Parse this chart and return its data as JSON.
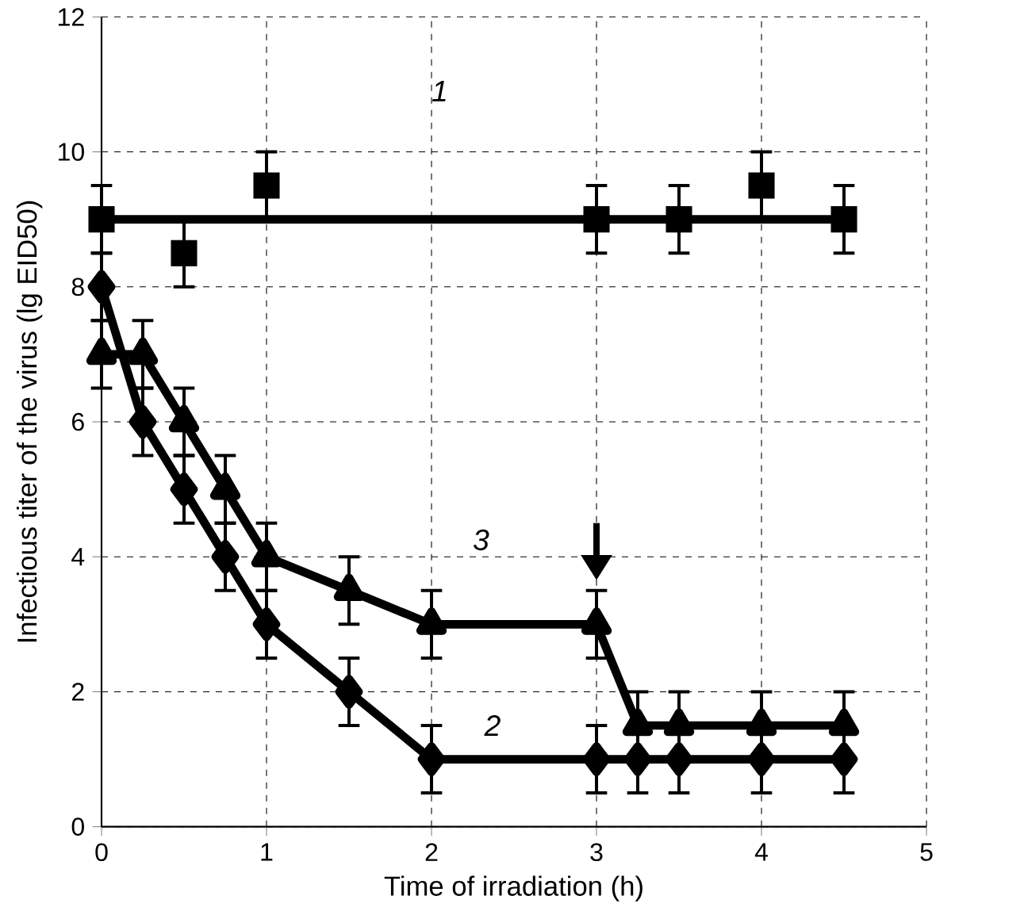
{
  "chart_data": {
    "type": "line",
    "xlabel": "Time of irradiation (h)",
    "ylabel": "Infectious titer of the virus (lg EID50)",
    "xlim": [
      0,
      5
    ],
    "ylim": [
      0,
      12
    ],
    "xticks": [
      0,
      1,
      2,
      3,
      4,
      5
    ],
    "yticks": [
      0,
      2,
      4,
      6,
      8,
      10,
      12
    ],
    "grid": true,
    "line_style": "solid",
    "series": [
      {
        "type": "scatter",
        "marker": "square",
        "color": "#000000",
        "x": [
          0,
          0.5,
          1,
          3,
          3.5,
          4,
          4.5
        ],
        "values": [
          9,
          8.5,
          9.5,
          9,
          9,
          9.5,
          9
        ],
        "errors": [
          0.5,
          0.5,
          0.5,
          0.5,
          0.5,
          0.5,
          0.5
        ]
      },
      {
        "marker": "none",
        "color": "#000000",
        "x": [
          0,
          4.5
        ],
        "values": [
          9,
          9
        ]
      },
      {
        "marker": "diamond",
        "color": "#000000",
        "x": [
          0,
          0.25,
          0.5,
          0.75,
          1,
          1.5,
          2,
          3,
          3.25,
          3.5,
          4,
          4.5
        ],
        "values": [
          8,
          6,
          5,
          4,
          3,
          2,
          1,
          1,
          1,
          1,
          1,
          1
        ],
        "errors": [
          0.5,
          0.5,
          0.5,
          0.5,
          0.5,
          0.5,
          0.5,
          0.5,
          0.5,
          0.5,
          0.5,
          0.5
        ]
      },
      {
        "marker": "triangle",
        "color": "#000000",
        "x": [
          0,
          0.25,
          0.5,
          0.75,
          1,
          1.5,
          2,
          3,
          3.25,
          3.5,
          4,
          4.5
        ],
        "values": [
          7,
          7,
          6,
          5,
          4,
          3.5,
          3,
          3,
          1.5,
          1.5,
          1.5,
          1.5
        ],
        "errors": [
          0.5,
          0.5,
          0.5,
          0.5,
          0.5,
          0.5,
          0.5,
          0.5,
          0.5,
          0.5,
          0.5,
          0.5
        ]
      }
    ],
    "annotations": [
      "1",
      "3",
      "2"
    ]
  }
}
